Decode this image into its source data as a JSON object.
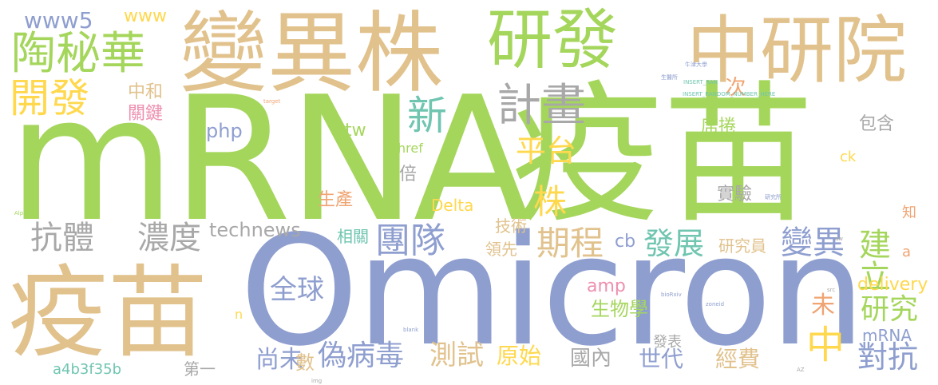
{
  "colors": {
    "green": "#a5d65c",
    "tan": "#e1c28d",
    "blue": "#8e9ecf",
    "gray": "#a8a8a8",
    "yellow": "#ffd84d",
    "orange": "#f0a472",
    "pink": "#ee8fb0",
    "teal": "#6fc5b0"
  },
  "words": [
    {
      "text": "mRNA"
    },
    {
      "text": "疫苗"
    },
    {
      "text": "Omicron"
    },
    {
      "text": "疫苗"
    },
    {
      "text": "變異株"
    },
    {
      "text": "研發"
    },
    {
      "text": "中研院"
    },
    {
      "text": "陶秘華"
    },
    {
      "text": "開發"
    },
    {
      "text": "www5"
    },
    {
      "text": "www"
    },
    {
      "text": "中和"
    },
    {
      "text": "關鍵"
    },
    {
      "text": "計畫"
    },
    {
      "text": "新"
    },
    {
      "text": "平台"
    },
    {
      "text": "次"
    },
    {
      "text": "席捲"
    },
    {
      "text": "包含"
    },
    {
      "text": "php"
    },
    {
      "text": "tw"
    },
    {
      "text": "href"
    },
    {
      "text": "倍"
    },
    {
      "text": "株"
    },
    {
      "text": "抗體"
    },
    {
      "text": "濃度"
    },
    {
      "text": "technews"
    },
    {
      "text": "團隊"
    },
    {
      "text": "期程"
    },
    {
      "text": "Delta"
    },
    {
      "text": "生產"
    },
    {
      "text": "技術"
    },
    {
      "text": "實驗"
    },
    {
      "text": "發展"
    },
    {
      "text": "cb"
    },
    {
      "text": "變異"
    },
    {
      "text": "建立"
    },
    {
      "text": "研究員"
    },
    {
      "text": "領先"
    },
    {
      "text": "相關"
    },
    {
      "text": "全球"
    },
    {
      "text": "amp"
    },
    {
      "text": "生物學"
    },
    {
      "text": "delivery"
    },
    {
      "text": "研究"
    },
    {
      "text": "未"
    },
    {
      "text": "中"
    },
    {
      "text": "對抗"
    },
    {
      "text": "偽病毒"
    },
    {
      "text": "測試"
    },
    {
      "text": "原始"
    },
    {
      "text": "國內"
    },
    {
      "text": "世代"
    },
    {
      "text": "經費"
    },
    {
      "text": "尚未"
    },
    {
      "text": "數"
    },
    {
      "text": "第一"
    },
    {
      "text": "發表"
    },
    {
      "text": "a4b3f35b"
    },
    {
      "text": "mRNA"
    },
    {
      "text": "ck"
    },
    {
      "text": "知"
    },
    {
      "text": "a"
    },
    {
      "text": "n"
    },
    {
      "text": "INSERT_RAN"
    },
    {
      "text": "INSERT_RANDOM_NUMBER_HERE"
    },
    {
      "text": "牛津大學"
    },
    {
      "text": "生醫所"
    },
    {
      "text": "研究所"
    },
    {
      "text": "blank"
    },
    {
      "text": "zoneid"
    },
    {
      "text": "bioRxiv"
    },
    {
      "text": "Alpha"
    },
    {
      "text": "target"
    },
    {
      "text": "img"
    },
    {
      "text": "AZ"
    },
    {
      "text": "src"
    },
    {
      "text": "aw"
    }
  ]
}
